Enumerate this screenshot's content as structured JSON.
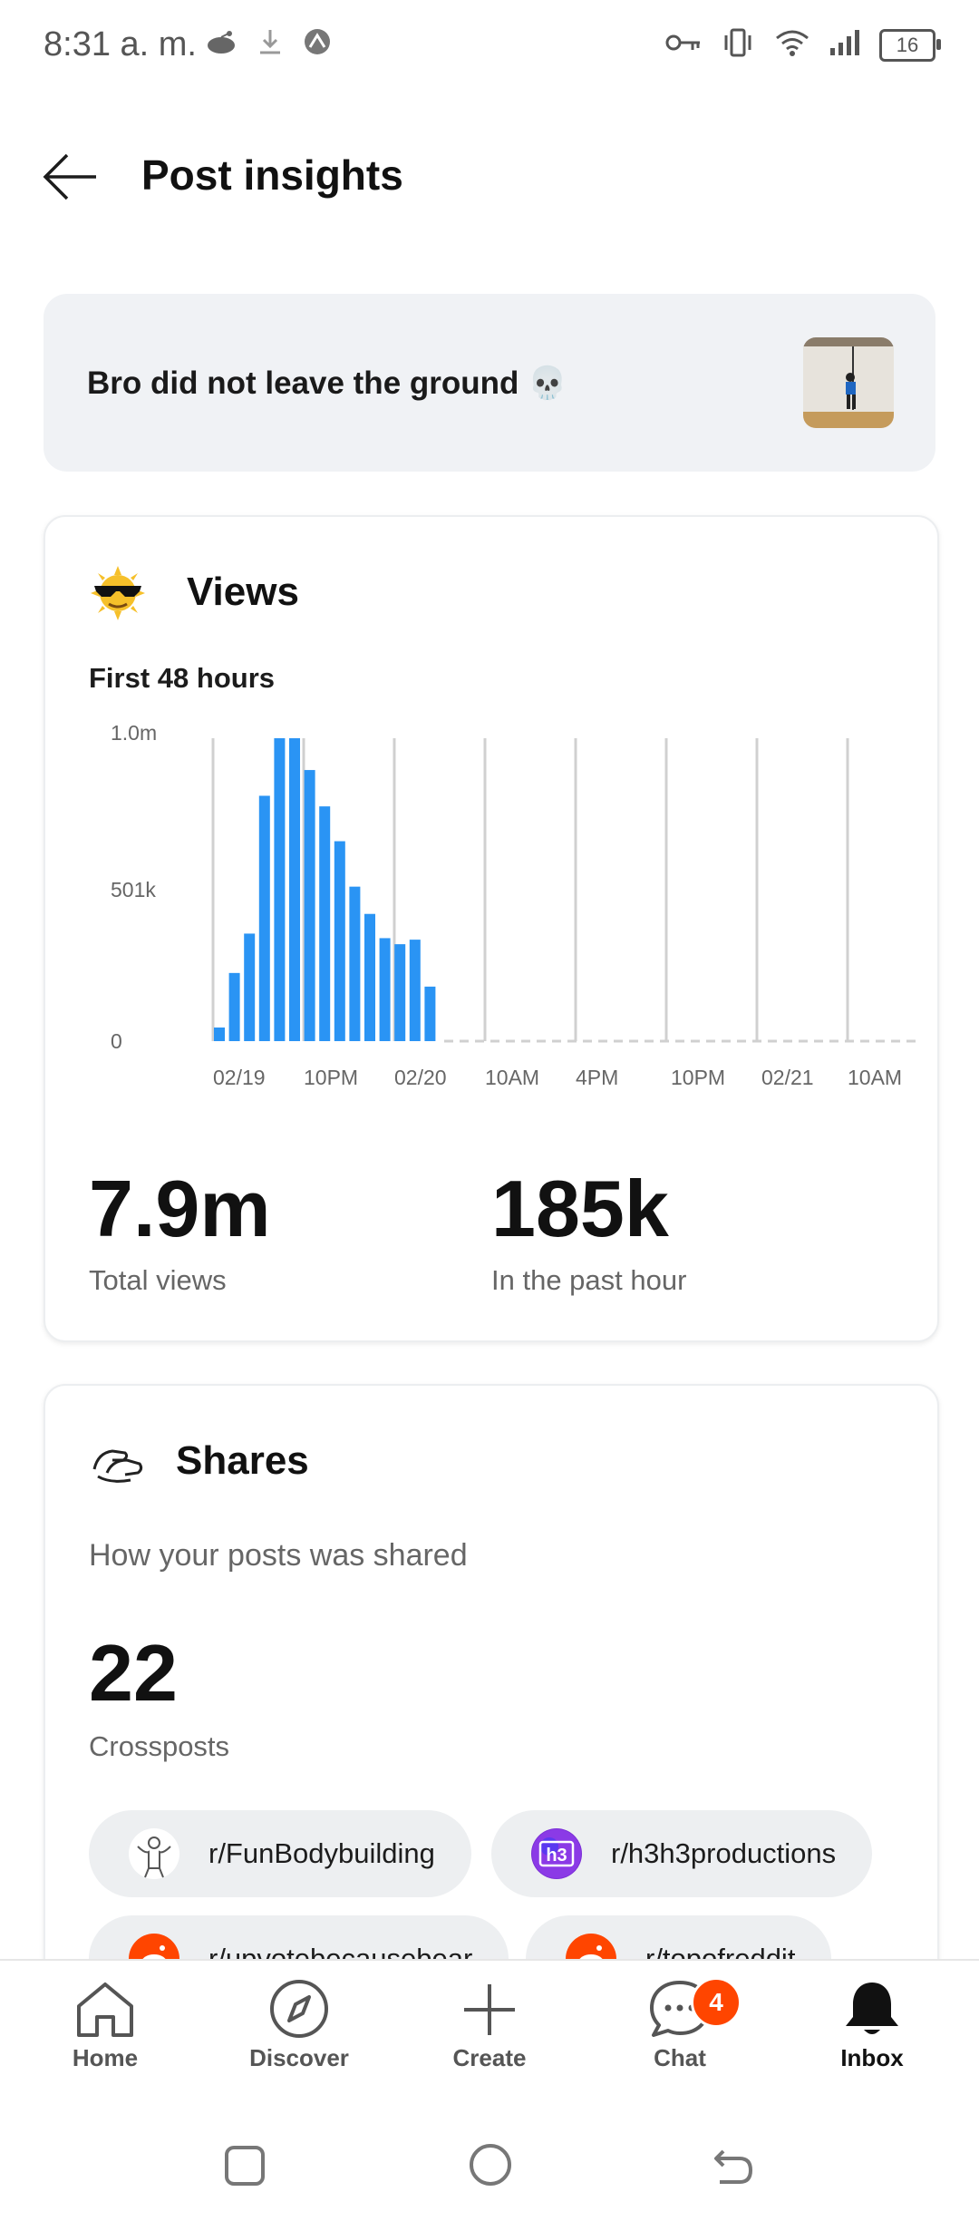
{
  "status_bar": {
    "time": "8:31 a. m.",
    "battery": "16",
    "icons_left": [
      "reddit-icon",
      "download-icon",
      "vpn-app-icon"
    ],
    "icons_right": [
      "key-icon",
      "vibrate-icon",
      "wifi-icon",
      "signal-icon",
      "battery-icon"
    ]
  },
  "header": {
    "title": "Post insights"
  },
  "post": {
    "title": "Bro did not leave the ground 💀"
  },
  "views": {
    "title": "Views",
    "subtitle": "First 48 hours",
    "total_value": "7.9m",
    "total_label": "Total views",
    "hour_value": "185k",
    "hour_label": "In the past hour"
  },
  "chart_data": {
    "type": "bar",
    "title": "",
    "y_tick_labels": [
      "1.0m",
      "501k",
      "0"
    ],
    "x_tick_labels": [
      "02/19",
      "10PM",
      "02/20",
      "10AM",
      "4PM",
      "10PM",
      "02/21",
      "10AM"
    ],
    "ylim": [
      0,
      1000000
    ],
    "values": [
      45000,
      225000,
      355000,
      810000,
      1000000,
      1000000,
      895000,
      775000,
      660000,
      510000,
      420000,
      340000,
      320000,
      335000,
      180000
    ],
    "bar_color": "#2a94f4",
    "grid": true
  },
  "shares": {
    "title": "Shares",
    "subtitle": "How your posts was shared",
    "count": "22",
    "count_label": "Crossposts",
    "chips": [
      {
        "label": "r/FunBodybuilding"
      },
      {
        "label": "r/h3h3productions"
      },
      {
        "label": "r/upvotebecausebear"
      },
      {
        "label": "r/topofreddit"
      }
    ]
  },
  "bottom_nav": {
    "items": [
      {
        "label": "Home"
      },
      {
        "label": "Discover"
      },
      {
        "label": "Create"
      },
      {
        "label": "Chat",
        "badge": "4"
      },
      {
        "label": "Inbox"
      }
    ]
  },
  "colors": {
    "accent": "#2a94f4",
    "badge": "#ff4500",
    "card_bg": "#f0f2f5"
  }
}
